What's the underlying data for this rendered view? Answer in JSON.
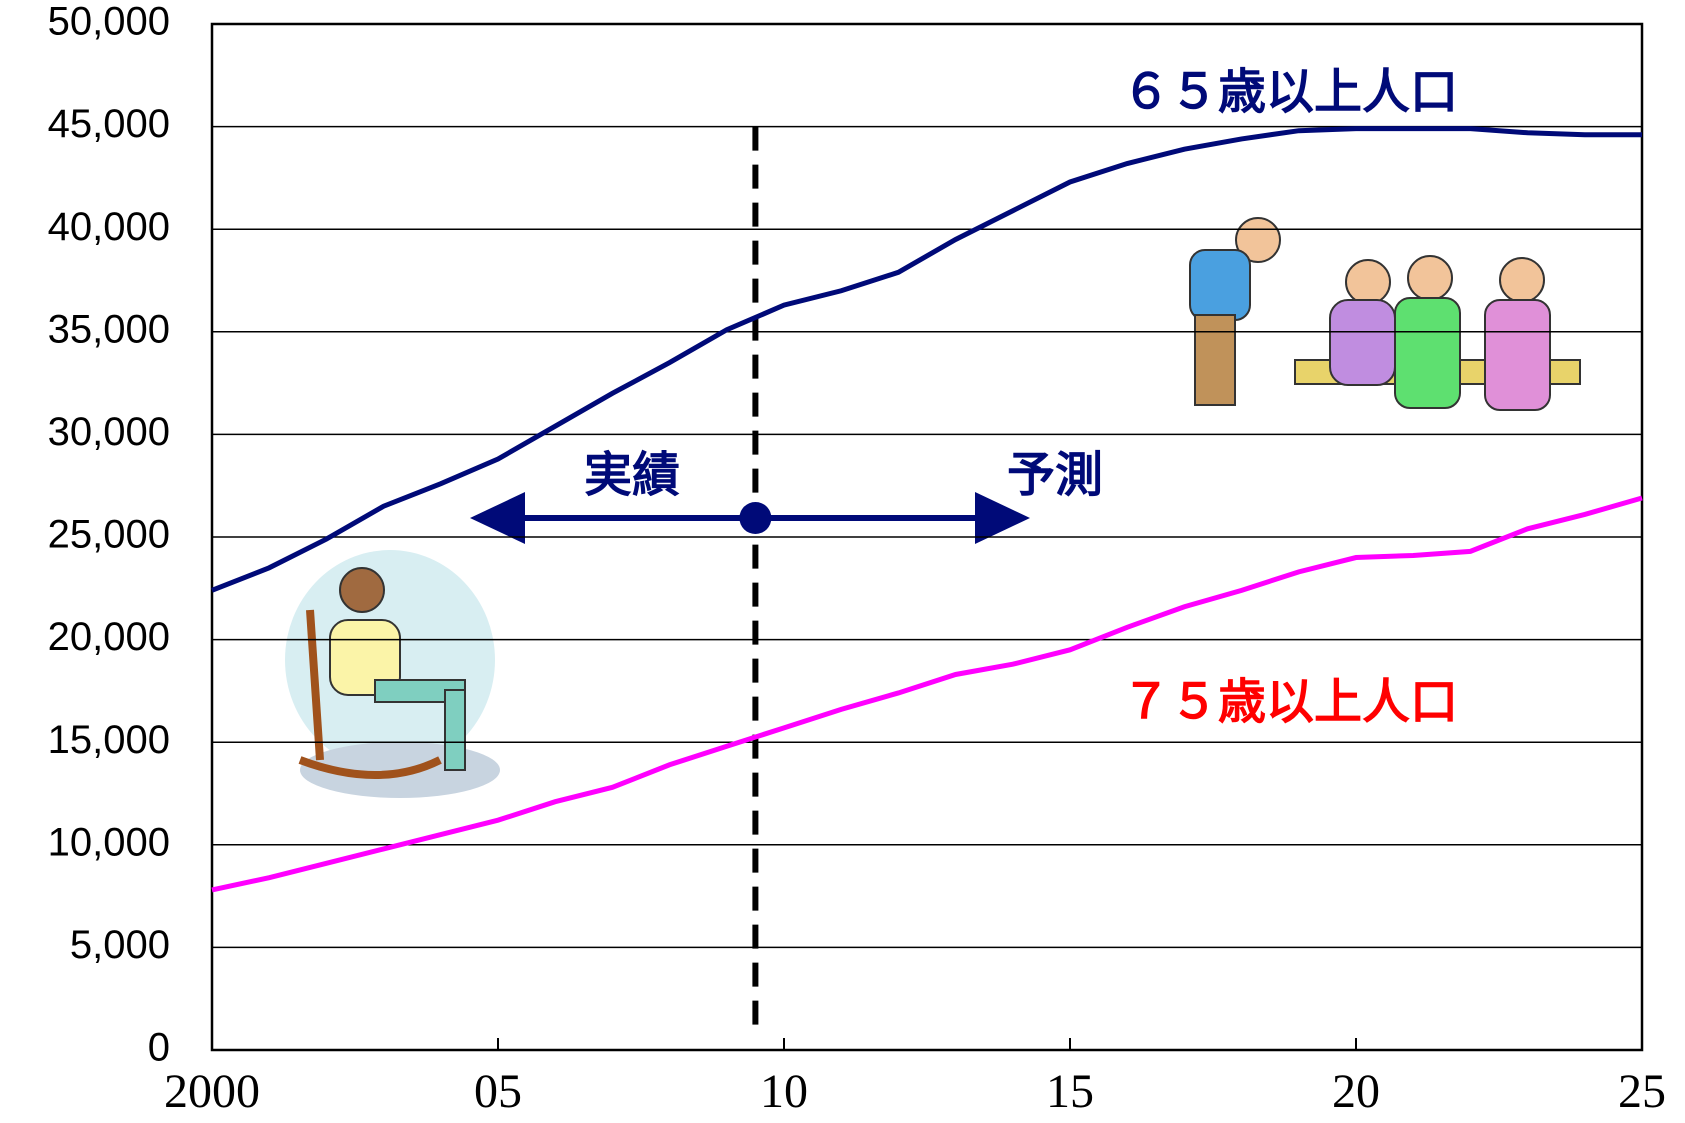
{
  "chart_data": {
    "type": "line",
    "x": [
      2000,
      2001,
      2002,
      2003,
      2004,
      2005,
      2006,
      2007,
      2008,
      2009,
      2010,
      2011,
      2012,
      2013,
      2014,
      2015,
      2016,
      2017,
      2018,
      2019,
      2020,
      2021,
      2022,
      2023,
      2024,
      2025
    ],
    "series": [
      {
        "name": "６５歳以上人口",
        "color": "#000a78",
        "label_color": "#000a78",
        "values": [
          22400,
          23500,
          24900,
          26500,
          27600,
          28800,
          30400,
          32000,
          33500,
          35100,
          36300,
          37000,
          37900,
          39500,
          40900,
          42300,
          43200,
          43900,
          44400,
          44800,
          44900,
          44900,
          44900,
          44700,
          44600,
          44600
        ]
      },
      {
        "name": "７５歳以上人口",
        "color": "#ff00ff",
        "label_color": "#ff0000",
        "values": [
          7800,
          8400,
          9100,
          9800,
          10500,
          11200,
          12100,
          12800,
          13900,
          14800,
          15700,
          16600,
          17400,
          18300,
          18800,
          19500,
          20600,
          21600,
          22400,
          23300,
          24000,
          24100,
          24300,
          25400,
          26100,
          26900
        ]
      }
    ],
    "xlim": [
      2000,
      2025
    ],
    "xticks": [
      {
        "value": 2000,
        "label": "2000"
      },
      {
        "value": 2005,
        "label": "05"
      },
      {
        "value": 2010,
        "label": "10"
      },
      {
        "value": 2015,
        "label": "15"
      },
      {
        "value": 2020,
        "label": "20"
      },
      {
        "value": 2025,
        "label": "25"
      }
    ],
    "ylim": [
      0,
      50000
    ],
    "yticks": [
      0,
      {
        "value": 5000,
        "label": "5,000"
      },
      {
        "value": 10000,
        "label": "10,000"
      },
      {
        "value": 15000,
        "label": "15,000"
      },
      {
        "value": 20000,
        "label": "20,000"
      },
      {
        "value": 25000,
        "label": "25,000"
      },
      {
        "value": 30000,
        "label": "30,000"
      },
      {
        "value": 35000,
        "label": "35,000"
      },
      {
        "value": 40000,
        "label": "40,000"
      },
      {
        "value": 45000,
        "label": "45,000"
      },
      {
        "value": 50000,
        "label": "50,000"
      }
    ],
    "grid": true,
    "divider_x": 2009.5,
    "annotations": {
      "past": "実績",
      "forecast": "予測"
    }
  }
}
